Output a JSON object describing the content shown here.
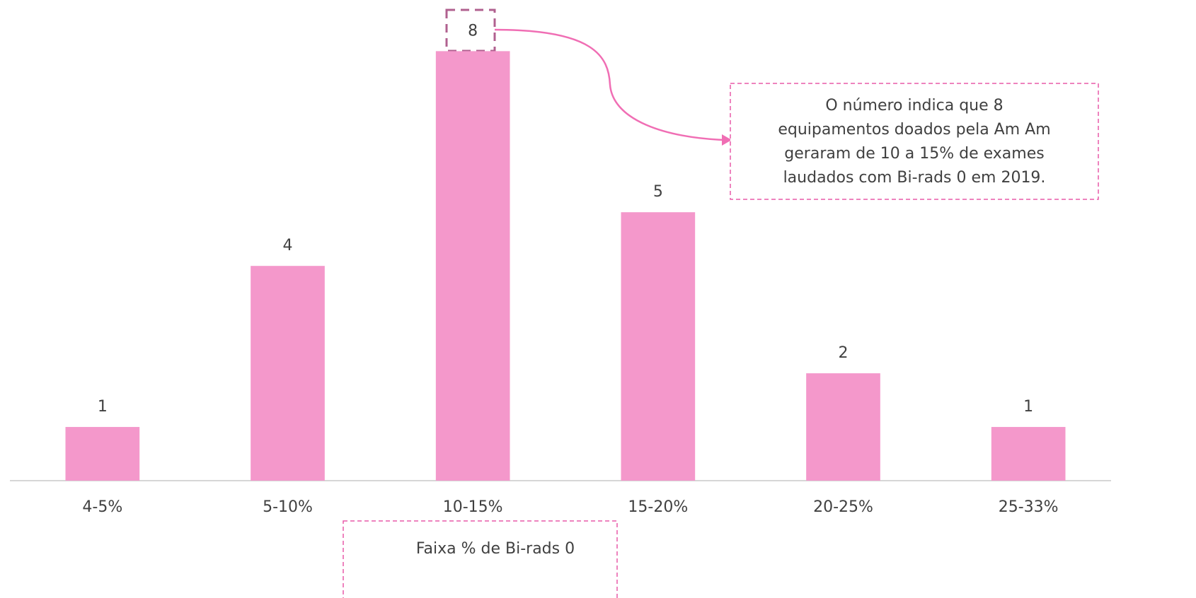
{
  "chart_data": {
    "type": "bar",
    "categories": [
      "4-5%",
      "5-10%",
      "10-15%",
      "15-20%",
      "20-25%",
      "25-33%"
    ],
    "values": [
      1,
      4,
      8,
      5,
      2,
      1
    ],
    "color": "#f498cb",
    "ylim": [
      0,
      8.9
    ],
    "x_label": "Faixa % de Bi-rads 0",
    "annotation": [
      "O número indica que 8",
      "equipamentos doados pela Am Am",
      "geraram de 10 a 15% de exames",
      "laudados com Bi-rads 0 em 2019."
    ]
  }
}
